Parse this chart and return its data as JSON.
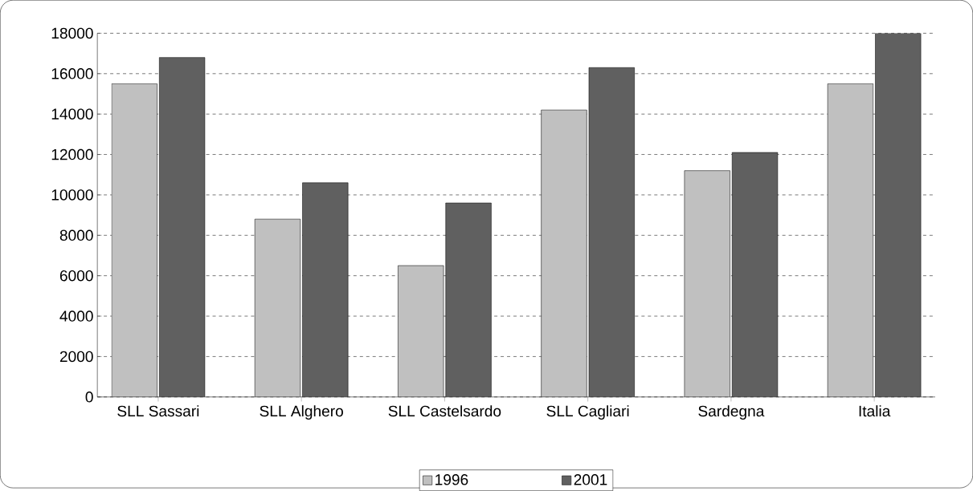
{
  "chart_data": {
    "type": "bar",
    "categories": [
      "SLL Sassari",
      "SLL Alghero",
      "SLL Castelsardo",
      "SLL Cagliari",
      "Sardegna",
      "Italia"
    ],
    "series": [
      {
        "name": "1996",
        "color": "#c0c0c0",
        "values": [
          15500,
          8800,
          6500,
          14200,
          11200,
          15500
        ]
      },
      {
        "name": "2001",
        "color": "#606060",
        "values": [
          16800,
          10600,
          9600,
          16300,
          12100,
          18000
        ]
      }
    ],
    "ylim": [
      0,
      18000
    ],
    "yticks": [
      0,
      2000,
      4000,
      6000,
      8000,
      10000,
      12000,
      14000,
      16000,
      18000
    ],
    "grid": "y",
    "legend": "bottom"
  }
}
